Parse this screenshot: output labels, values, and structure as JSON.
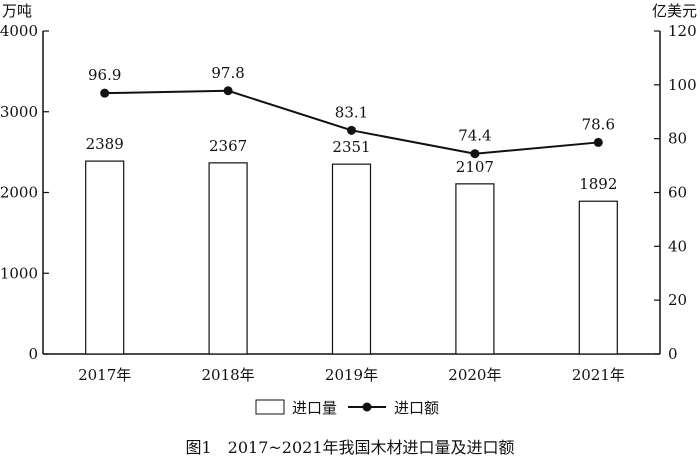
{
  "chart_data": {
    "type": "bar+line",
    "title": "图1　2017~2021年我国木材进口量及进口额",
    "categories": [
      "2017年",
      "2018年",
      "2019年",
      "2020年",
      "2021年"
    ],
    "y_left": {
      "label": "万吨",
      "range": [
        0,
        4000
      ],
      "ticks": [
        "0",
        "1000",
        "2000",
        "3000",
        "4000"
      ]
    },
    "y_right": {
      "label": "亿美元",
      "range": [
        0,
        120
      ],
      "ticks": [
        "0",
        "20",
        "40",
        "60",
        "80",
        "100",
        "120"
      ]
    },
    "series": [
      {
        "name": "进口量",
        "type": "bar",
        "axis": "left",
        "values": [
          2389,
          2367,
          2351,
          2107,
          1892
        ],
        "labels": [
          "2389",
          "2367",
          "2351",
          "2107",
          "1892"
        ]
      },
      {
        "name": "进口额",
        "type": "line",
        "axis": "right",
        "values": [
          96.9,
          97.8,
          83.1,
          74.4,
          78.6
        ],
        "labels": [
          "96.9",
          "97.8",
          "83.1",
          "74.4",
          "78.6"
        ]
      }
    ],
    "grid": false,
    "legend_position": "bottom"
  }
}
